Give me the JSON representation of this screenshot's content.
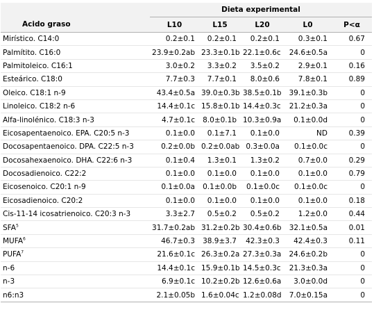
{
  "header": {
    "group_label": "Dieta experimental",
    "columns": [
      "Acido graso",
      "L10",
      "L15",
      "L20",
      "L0",
      "P<α"
    ]
  },
  "rows": [
    {
      "name": "Mirístico. C14:0",
      "sup": "",
      "values": [
        "0.2±0.1",
        "0.2±0.1",
        "0.2±0.1",
        "0.3±0.1"
      ],
      "p": "0.67"
    },
    {
      "name": "Palmítito. C16:0",
      "sup": "",
      "values": [
        "23.9±0.2ab",
        "23.3±0.1b",
        "22.1±0.6c",
        "24.6±0.5a"
      ],
      "p": "0"
    },
    {
      "name": "Palmitoleico. C16:1",
      "sup": "",
      "values": [
        "3.0±0.2",
        "3.3±0.2",
        "3.5±0.2",
        "2.9±0.1"
      ],
      "p": "0.16"
    },
    {
      "name": "Esteárico. C18:0",
      "sup": "",
      "values": [
        "7.7±0.3",
        "7.7±0.1",
        "8.0±0.6",
        "7.8±0.1"
      ],
      "p": "0.89"
    },
    {
      "name": "Oleico. C18:1 n-9",
      "sup": "",
      "values": [
        "43.4±0.5a",
        "39.0±0.3b",
        "38.5±0.1b",
        "39.1±0.3b"
      ],
      "p": "0"
    },
    {
      "name": "Linoleico. C18:2 n-6",
      "sup": "",
      "values": [
        "14.4±0.1c",
        "15.8±0.1b",
        "14.4±0.3c",
        "21.2±0.3a"
      ],
      "p": "0"
    },
    {
      "name": "Alfa-linolénico. C18:3 n-3",
      "sup": "",
      "values": [
        "4.7±0.1c",
        "8.0±0.1b",
        "10.3±0.9a",
        "0.1±0.0d"
      ],
      "p": "0"
    },
    {
      "name": "Eicosapentaenoico. EPA. C20:5 n-3",
      "sup": "",
      "values": [
        "0.1±0.0",
        "0.1±7.1",
        "0.1±0.0",
        "ND"
      ],
      "p": "0.39"
    },
    {
      "name": "Docosapentaenoico. DPA. C22:5 n-3",
      "sup": "",
      "values": [
        "0.2±0.0b",
        "0.2±0.0ab",
        "0.3±0.0a",
        "0.1±0.0c"
      ],
      "p": "0"
    },
    {
      "name": "Docosahexaenoico. DHA. C22:6 n-3",
      "sup": "",
      "values": [
        "0.1±0.4",
        "1.3±0.1",
        "1.3±0.2",
        "0.7±0.0"
      ],
      "p": "0.29"
    },
    {
      "name": "Docosadienoico. C22:2",
      "sup": "",
      "values": [
        "0.1±0.0",
        "0.1±0.0",
        "0.1±0.0",
        "0.1±0.0"
      ],
      "p": "0.79"
    },
    {
      "name": "Eicosenoico. C20:1 n-9",
      "sup": "",
      "values": [
        "0.1±0.0a",
        "0.1±0.0b",
        "0.1±0.0c",
        "0.1±0.0c"
      ],
      "p": "0"
    },
    {
      "name": "Eicosadienoico. C20:2",
      "sup": "",
      "values": [
        "0.1±0.0",
        "0.1±0.0",
        "0.1±0.0",
        "0.1±0.0"
      ],
      "p": "0.18"
    },
    {
      "name": "Cis-11-14 icosatrienoico. C20:3 n-3",
      "sup": "",
      "values": [
        "3.3±2.7",
        "0.5±0.2",
        "0.5±0.2",
        "1.2±0.0"
      ],
      "p": "0.44"
    },
    {
      "name": "SFA",
      "sup": "5",
      "values": [
        "31.7±0.2ab",
        "31.2±0.2b",
        "30.4±0.6b",
        "32.1±0.5a"
      ],
      "p": "0.01"
    },
    {
      "name": "MUFA",
      "sup": "6",
      "values": [
        "46.7±0.3",
        "38.9±3.7",
        "42.3±0.3",
        "42.4±0.3"
      ],
      "p": "0.11"
    },
    {
      "name": "PUFA",
      "sup": "7",
      "values": [
        "21.6±0.1c",
        "26.3±0.2a",
        "27.3±0.3a",
        "24.6±0.2b"
      ],
      "p": "0"
    },
    {
      "name": "n-6",
      "sup": "",
      "values": [
        "14.4±0.1c",
        "15.9±0.1b",
        "14.5±0.3c",
        "21.3±0.3a"
      ],
      "p": "0"
    },
    {
      "name": "n-3",
      "sup": "",
      "values": [
        "6.9±0.1c",
        "10.2±0.2b",
        "12.6±0.6a",
        "3.0±0.0d"
      ],
      "p": "0"
    },
    {
      "name": "n6:n3",
      "sup": "",
      "values": [
        "2.1±0.05b",
        "1.6±0.04c",
        "1.2±0.08d",
        "7.0±0.15a"
      ],
      "p": "0"
    }
  ]
}
